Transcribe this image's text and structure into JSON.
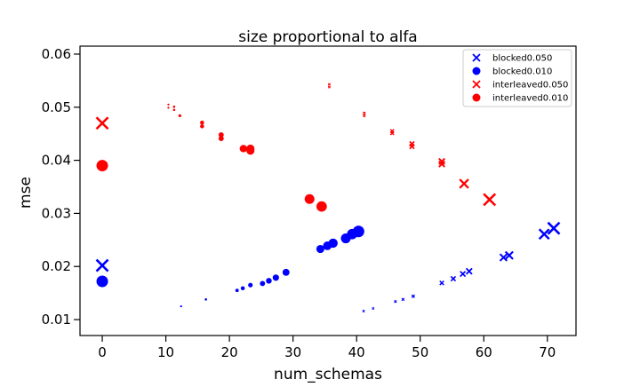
{
  "chart_data": {
    "type": "scatter",
    "title": "size proportional to alfa",
    "xlabel": "num_schemas",
    "ylabel": "mse",
    "xlim": [
      -3.5,
      74.5
    ],
    "ylim": [
      0.007,
      0.0615
    ],
    "xticks": [
      0,
      10,
      20,
      30,
      40,
      50,
      60,
      70
    ],
    "xtick_labels": [
      "0",
      "10",
      "20",
      "30",
      "40",
      "50",
      "60",
      "70"
    ],
    "yticks": [
      0.01,
      0.02,
      0.03,
      0.04,
      0.05,
      0.06
    ],
    "ytick_labels": [
      "0.01",
      "0.02",
      "0.03",
      "0.04",
      "0.05",
      "0.06"
    ],
    "grid": false,
    "legend_position": "top-right",
    "note": "marker size proportional to alfa",
    "series": [
      {
        "name": "blocked0.050",
        "marker": "x",
        "color": "#0000ff",
        "points": [
          {
            "x": 0,
            "y": 0.0202,
            "s": 1.0
          },
          {
            "x": 41.1,
            "y": 0.0116,
            "s": 0.12
          },
          {
            "x": 42.6,
            "y": 0.0121,
            "s": 0.15
          },
          {
            "x": 46.1,
            "y": 0.0134,
            "s": 0.2
          },
          {
            "x": 47.3,
            "y": 0.0138,
            "s": 0.22
          },
          {
            "x": 48.9,
            "y": 0.0144,
            "s": 0.25
          },
          {
            "x": 53.4,
            "y": 0.0169,
            "s": 0.35
          },
          {
            "x": 55.2,
            "y": 0.0177,
            "s": 0.4
          },
          {
            "x": 56.7,
            "y": 0.0186,
            "s": 0.45
          },
          {
            "x": 57.7,
            "y": 0.0191,
            "s": 0.5
          },
          {
            "x": 63.1,
            "y": 0.0217,
            "s": 0.6
          },
          {
            "x": 64.0,
            "y": 0.0221,
            "s": 0.65
          },
          {
            "x": 69.5,
            "y": 0.0261,
            "s": 0.85
          },
          {
            "x": 71.0,
            "y": 0.0272,
            "s": 1.0
          }
        ]
      },
      {
        "name": "blocked0.010",
        "marker": "o",
        "color": "#0000ff",
        "points": [
          {
            "x": 0,
            "y": 0.0172,
            "s": 1.0
          },
          {
            "x": 12.4,
            "y": 0.0125,
            "s": 0.12
          },
          {
            "x": 16.3,
            "y": 0.0138,
            "s": 0.2
          },
          {
            "x": 21.2,
            "y": 0.0155,
            "s": 0.3
          },
          {
            "x": 22.1,
            "y": 0.0159,
            "s": 0.35
          },
          {
            "x": 23.3,
            "y": 0.0165,
            "s": 0.4
          },
          {
            "x": 25.2,
            "y": 0.0168,
            "s": 0.45
          },
          {
            "x": 26.2,
            "y": 0.0173,
            "s": 0.5
          },
          {
            "x": 27.3,
            "y": 0.0179,
            "s": 0.55
          },
          {
            "x": 28.9,
            "y": 0.0189,
            "s": 0.6
          },
          {
            "x": 34.3,
            "y": 0.0233,
            "s": 0.7
          },
          {
            "x": 35.4,
            "y": 0.0239,
            "s": 0.75
          },
          {
            "x": 36.3,
            "y": 0.0244,
            "s": 0.8
          },
          {
            "x": 38.3,
            "y": 0.0253,
            "s": 0.85
          },
          {
            "x": 39.3,
            "y": 0.0261,
            "s": 0.9
          },
          {
            "x": 40.3,
            "y": 0.0266,
            "s": 1.0
          }
        ]
      },
      {
        "name": "interleaved0.050",
        "marker": "x",
        "color": "#ff0000",
        "points": [
          {
            "x": 0,
            "y": 0.047,
            "s": 1.0
          },
          {
            "x": 35.7,
            "y": 0.0538,
            "s": 0.12
          },
          {
            "x": 35.7,
            "y": 0.0543,
            "s": 0.12
          },
          {
            "x": 41.2,
            "y": 0.0484,
            "s": 0.2
          },
          {
            "x": 41.2,
            "y": 0.0489,
            "s": 0.2
          },
          {
            "x": 45.6,
            "y": 0.0451,
            "s": 0.3
          },
          {
            "x": 45.6,
            "y": 0.0455,
            "s": 0.3
          },
          {
            "x": 48.7,
            "y": 0.0426,
            "s": 0.4
          },
          {
            "x": 48.7,
            "y": 0.0431,
            "s": 0.4
          },
          {
            "x": 53.4,
            "y": 0.0393,
            "s": 0.5
          },
          {
            "x": 53.4,
            "y": 0.0398,
            "s": 0.5
          },
          {
            "x": 56.9,
            "y": 0.0356,
            "s": 0.75
          },
          {
            "x": 60.9,
            "y": 0.0326,
            "s": 1.0
          }
        ]
      },
      {
        "name": "interleaved0.010",
        "marker": "o",
        "color": "#ff0000",
        "points": [
          {
            "x": 0,
            "y": 0.039,
            "s": 1.0
          },
          {
            "x": 10.4,
            "y": 0.0499,
            "s": 0.15
          },
          {
            "x": 10.4,
            "y": 0.0505,
            "s": 0.15
          },
          {
            "x": 11.3,
            "y": 0.0495,
            "s": 0.2
          },
          {
            "x": 11.3,
            "y": 0.0501,
            "s": 0.2
          },
          {
            "x": 12.2,
            "y": 0.0484,
            "s": 0.25
          },
          {
            "x": 15.7,
            "y": 0.0464,
            "s": 0.35
          },
          {
            "x": 15.7,
            "y": 0.0471,
            "s": 0.35
          },
          {
            "x": 18.7,
            "y": 0.0441,
            "s": 0.45
          },
          {
            "x": 18.7,
            "y": 0.0448,
            "s": 0.45
          },
          {
            "x": 22.2,
            "y": 0.0422,
            "s": 0.65
          },
          {
            "x": 23.3,
            "y": 0.0418,
            "s": 0.7
          },
          {
            "x": 23.3,
            "y": 0.0422,
            "s": 0.7
          },
          {
            "x": 32.6,
            "y": 0.0327,
            "s": 0.85
          },
          {
            "x": 34.5,
            "y": 0.0313,
            "s": 0.9
          }
        ]
      }
    ]
  }
}
